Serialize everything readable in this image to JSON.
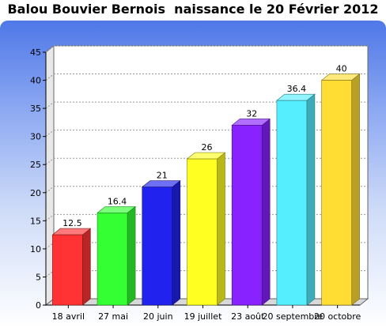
{
  "chart_data": {
    "type": "bar",
    "title": "Balou Bouvier Bernois  naissance le 20 Février 2012",
    "xlabel": "",
    "ylabel": "",
    "categories": [
      "18 avril",
      "27 mai",
      "20 juin",
      "19 juillet",
      "23 août",
      "20 septembre",
      "20 octobre"
    ],
    "values": [
      12.5,
      16.4,
      21,
      26,
      32,
      36.4,
      40
    ],
    "value_labels": [
      "12.5",
      "16.4",
      "21",
      "26",
      "32",
      "36.4",
      "40"
    ],
    "ylim": [
      0,
      45
    ],
    "yticks": [
      0,
      5,
      10,
      15,
      20,
      25,
      30,
      35,
      40,
      45
    ],
    "grid": true,
    "legend": "none",
    "colors": [
      "#ff3333",
      "#33ff33",
      "#2222ee",
      "#ffff22",
      "#8822ff",
      "#55eeff",
      "#ffdd33"
    ]
  }
}
